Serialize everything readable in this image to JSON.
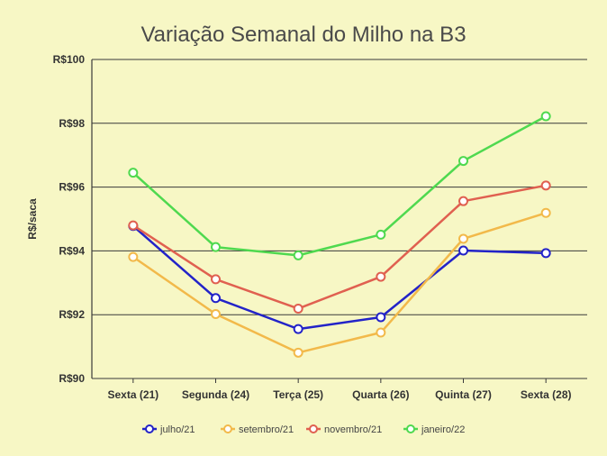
{
  "chart_data": {
    "type": "line",
    "title": "Variação Semanal do Milho na B3",
    "xlabel": "",
    "ylabel": "R$/saca",
    "categories": [
      "Sexta (21)",
      "Segunda (24)",
      "Terça (25)",
      "Quarta (26)",
      "Quinta (27)",
      "Sexta (28)"
    ],
    "ylim": [
      90,
      100
    ],
    "yticks": [
      90,
      92,
      94,
      96,
      98,
      100
    ],
    "ytick_labels": [
      "R$90",
      "R$92",
      "R$94",
      "R$96",
      "R$98",
      "R$100"
    ],
    "grid": true,
    "legend_position": "bottom",
    "series": [
      {
        "name": "julho/21",
        "color": "#2323c8",
        "values": [
          94.78,
          92.52,
          91.55,
          91.92,
          94.01,
          93.93
        ]
      },
      {
        "name": "setembro/21",
        "color": "#f2b94a",
        "values": [
          93.81,
          92.02,
          90.81,
          91.44,
          94.38,
          95.19
        ]
      },
      {
        "name": "novembro/21",
        "color": "#e06050",
        "values": [
          94.8,
          93.11,
          92.19,
          93.19,
          95.56,
          96.05
        ]
      },
      {
        "name": "janeiro/22",
        "color": "#4fd94f",
        "values": [
          96.45,
          94.12,
          93.86,
          94.51,
          96.82,
          98.22
        ]
      }
    ]
  }
}
